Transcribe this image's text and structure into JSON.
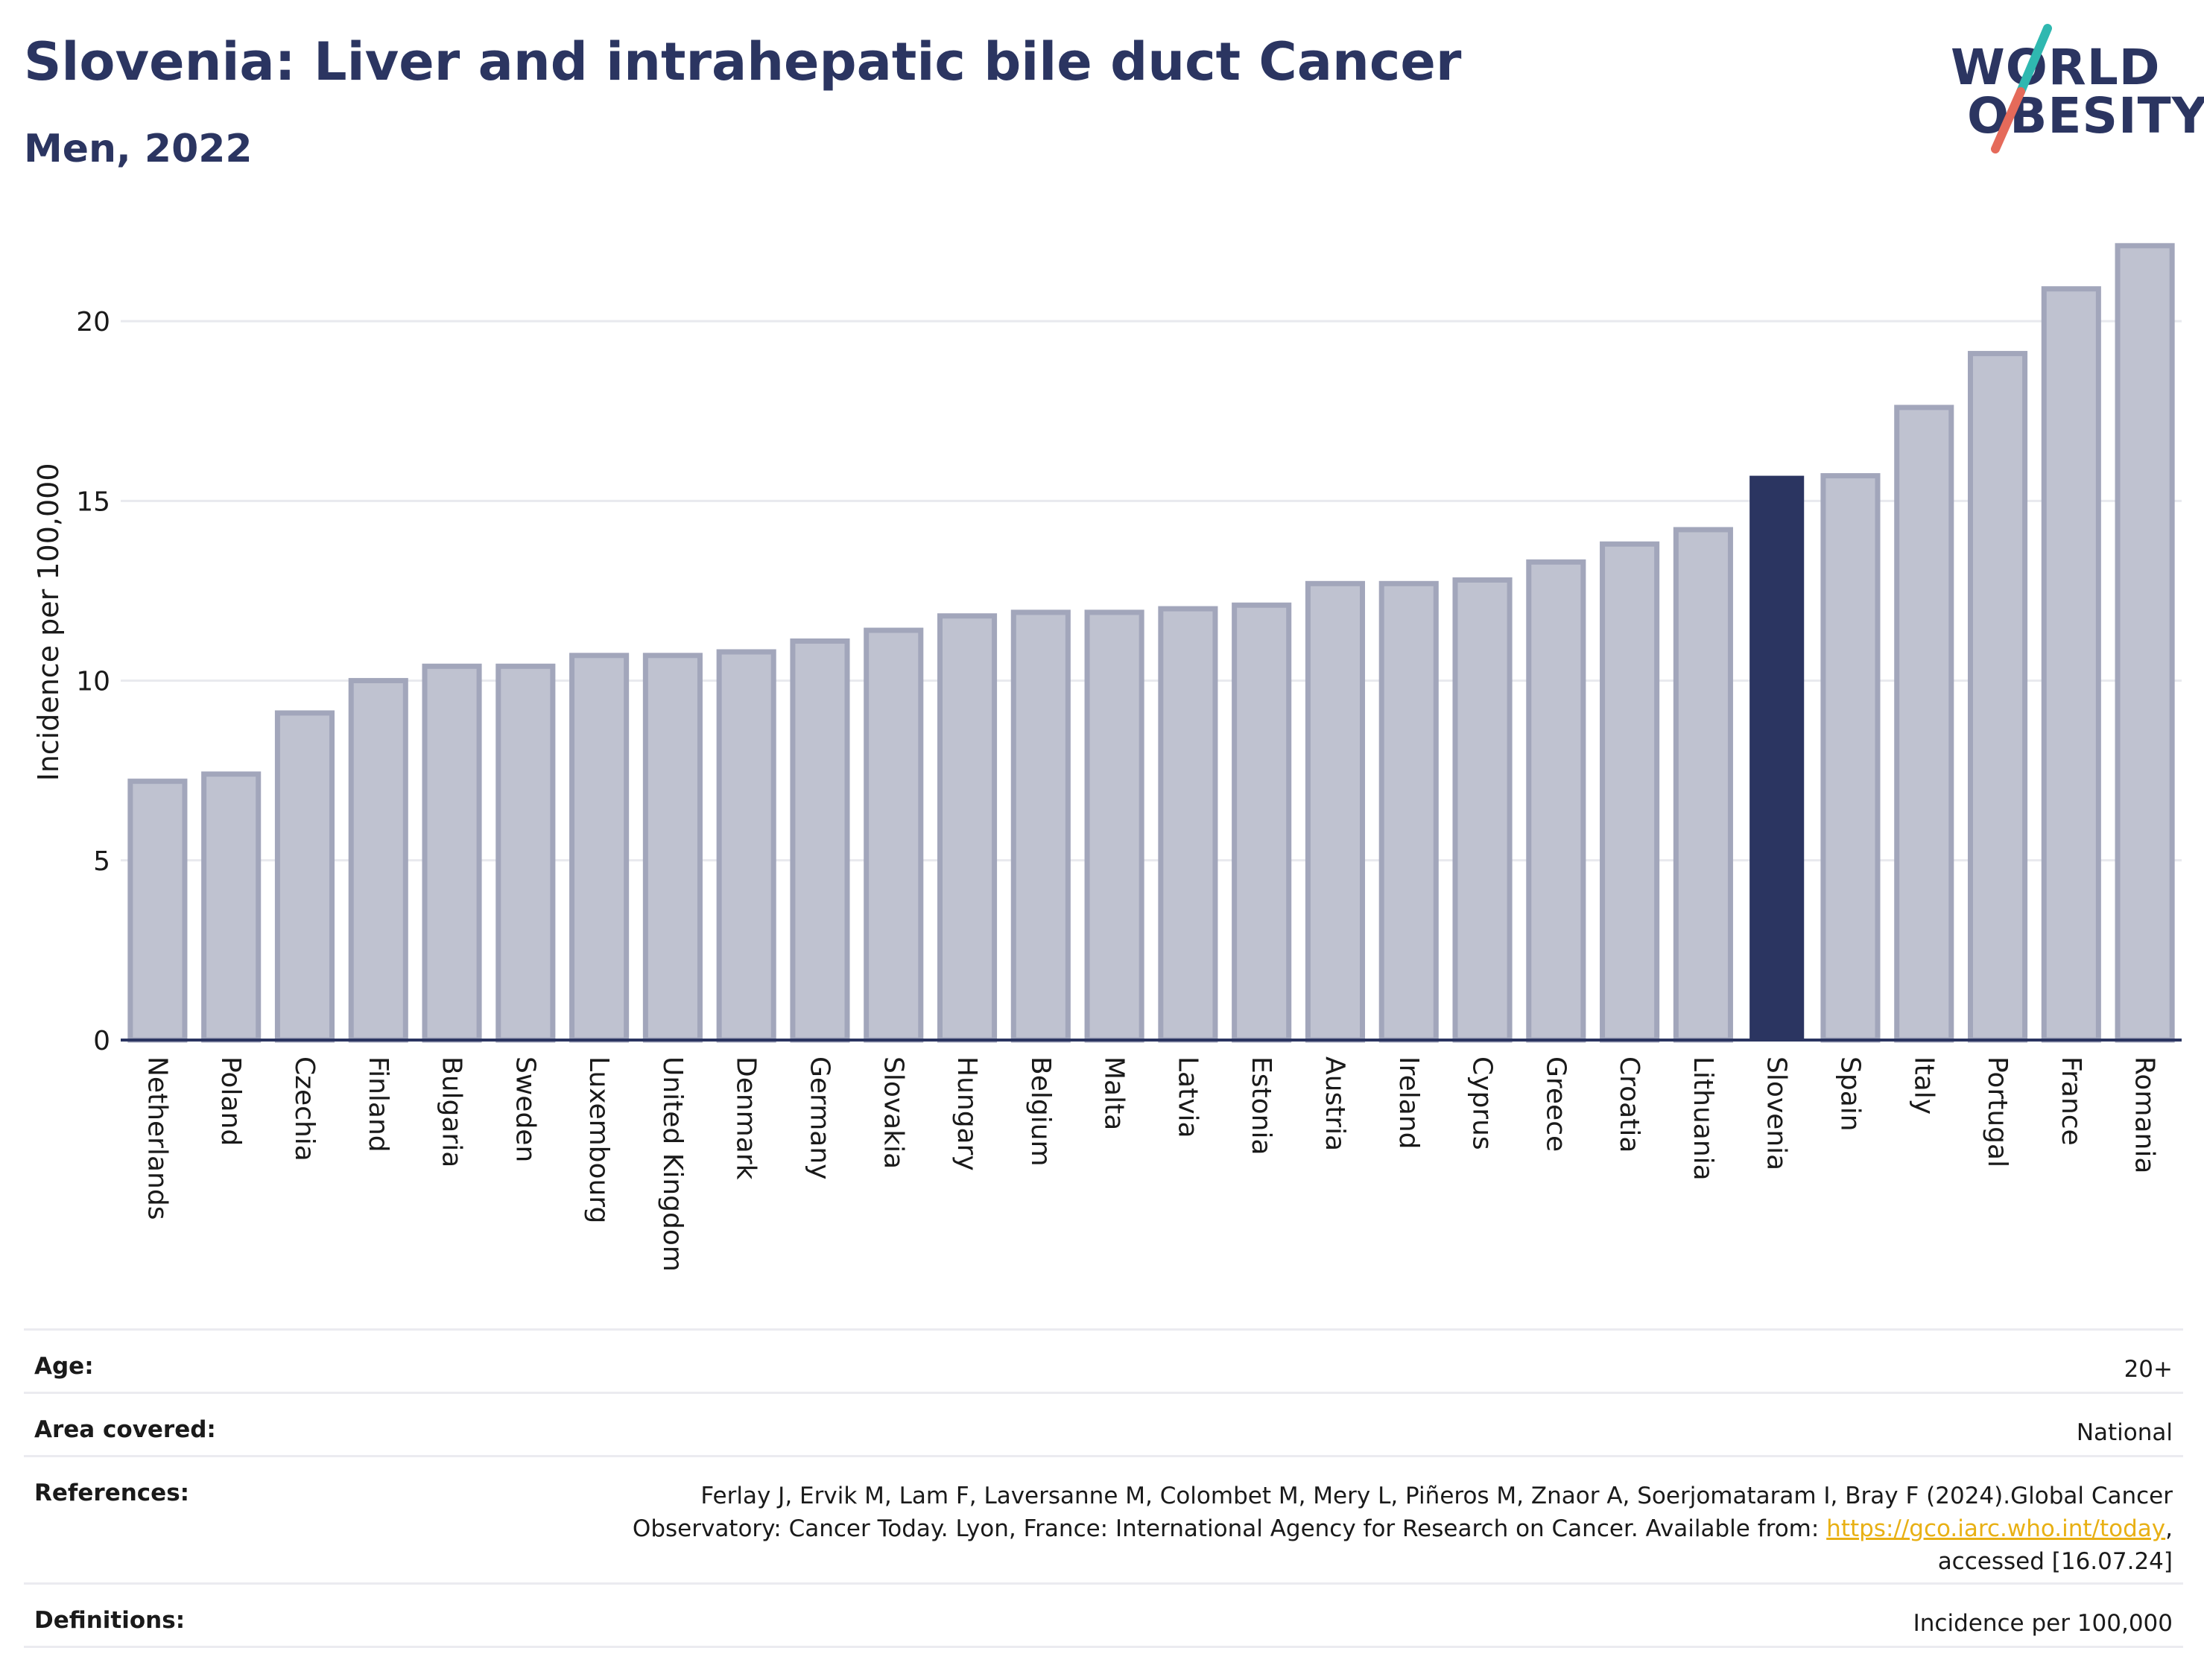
{
  "header": {
    "title": "Slovenia: Liver and intrahepatic bile duct Cancer",
    "subtitle": "Men, 2022"
  },
  "logo": {
    "line1": "WORLD",
    "line2": "OBESITY",
    "text_color": "#2b3561",
    "slash_colors": [
      "#2fb8b0",
      "#e56a5a"
    ]
  },
  "colors": {
    "bar_fill": "#bfc2d0",
    "bar_stroke": "#a2a6bb",
    "highlight": "#2b3561",
    "grid": "#e8e9ee",
    "axis": "#2b3561"
  },
  "chart_data": {
    "type": "bar",
    "title": "Slovenia: Liver and intrahepatic bile duct Cancer",
    "subtitle": "Men, 2022",
    "xlabel": "",
    "ylabel": "Incidence per 100,000",
    "ylim": [
      0,
      22.2
    ],
    "yticks": [
      0,
      5,
      10,
      15,
      20
    ],
    "grid": true,
    "legend": "none",
    "highlight": "Slovenia",
    "categories": [
      "Netherlands",
      "Poland",
      "Czechia",
      "Finland",
      "Bulgaria",
      "Sweden",
      "Luxembourg",
      "United Kingdom",
      "Denmark",
      "Germany",
      "Slovakia",
      "Hungary",
      "Belgium",
      "Malta",
      "Latvia",
      "Estonia",
      "Austria",
      "Ireland",
      "Cyprus",
      "Greece",
      "Croatia",
      "Lithuania",
      "Slovenia",
      "Spain",
      "Italy",
      "Portugal",
      "France",
      "Romania"
    ],
    "values": [
      7.2,
      7.4,
      9.1,
      10.0,
      10.4,
      10.4,
      10.7,
      10.7,
      10.8,
      11.1,
      11.4,
      11.8,
      11.9,
      11.9,
      12.0,
      12.1,
      12.7,
      12.7,
      12.8,
      13.3,
      13.8,
      14.2,
      15.7,
      15.7,
      17.6,
      19.1,
      20.9,
      22.1
    ]
  },
  "footer": {
    "age_label": "Age:",
    "age_value": "20+",
    "area_label": "Area covered:",
    "area_value": "National",
    "references_label": "References:",
    "references_line1": "Ferlay J, Ervik M, Lam F, Laversanne M, Colombet M, Mery L, Piñeros M, Znaor A, Soerjomataram I, Bray F (2024).Global Cancer",
    "references_line2": "Observatory: Cancer Today. Lyon, France: International Agency for Research on Cancer. Available from: ",
    "references_link": "https://gco.iarc.who.int/today",
    "references_line2_end": ",",
    "references_line3": "accessed [16.07.24]",
    "definitions_label": "Definitions:",
    "definitions_value": "Incidence per 100,000"
  }
}
